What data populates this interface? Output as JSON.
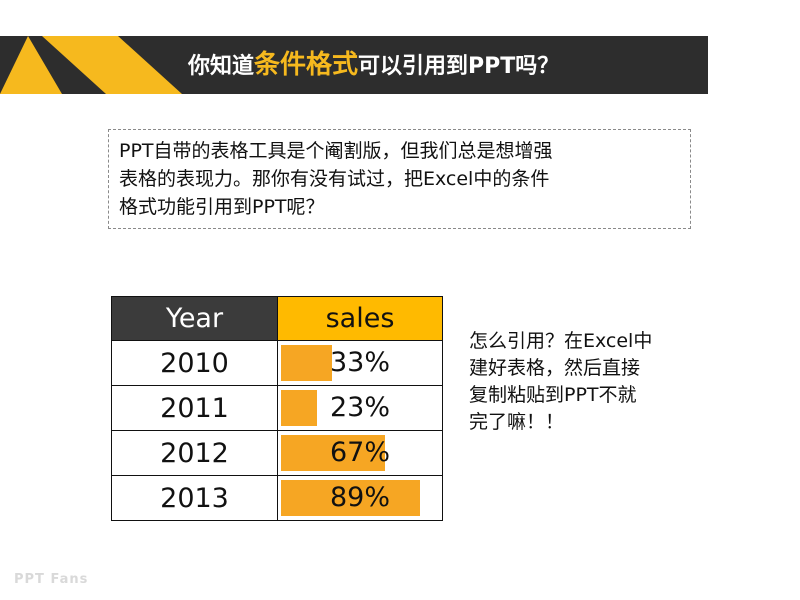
{
  "header": {
    "title_prefix": "你知道",
    "title_highlight": "条件格式",
    "title_suffix": "可以引用到PPT吗？",
    "accent_color": "#f6b91e",
    "bar_color": "#2d2d2d"
  },
  "intro": {
    "lines": [
      "PPT自带的表格工具是个阉割版，但我们总是想增强",
      "表格的表现力。那你有没有试过，把Excel中的条件",
      "格式功能引用到PPT呢？"
    ]
  },
  "table": {
    "headers": [
      "Year",
      "sales"
    ],
    "header_colors": {
      "year": "#3b3b3b",
      "sales": "#ffba00"
    },
    "bar_color": "#f6a623",
    "rows": [
      {
        "year": "2010",
        "sales": "33%",
        "value": 0.33
      },
      {
        "year": "2011",
        "sales": "23%",
        "value": 0.23
      },
      {
        "year": "2012",
        "sales": "67%",
        "value": 0.67
      },
      {
        "year": "2013",
        "sales": "89%",
        "value": 0.89
      }
    ]
  },
  "side_note": {
    "lines": [
      "怎么引用？在Excel中",
      "建好表格，然后直接",
      "复制粘贴到PPT不就",
      "完了嘛！！"
    ]
  },
  "footer": {
    "logo_text": "PPT Fans"
  }
}
